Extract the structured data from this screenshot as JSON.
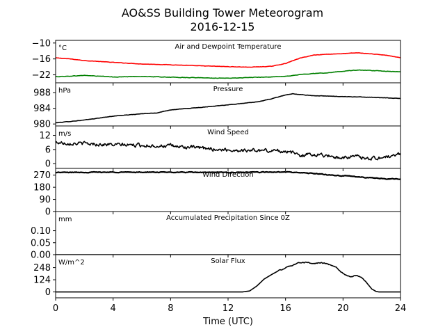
{
  "figure": {
    "title": "AO&SS Building Tower Meteorogram",
    "date": "2016-12-15",
    "xlabel": "Time (UTC)"
  },
  "colors": {
    "temperature": "#ff0000",
    "dewpoint": "#008000",
    "black": "#000000"
  },
  "chart_data": [
    {
      "type": "line",
      "title": "Air and Dewpoint Temperature",
      "unit": "°C",
      "xlim": [
        0,
        24
      ],
      "ylim": [
        -25,
        -9
      ],
      "xticks": [
        0,
        4,
        8,
        12,
        16,
        20,
        24
      ],
      "yticks": [
        -10,
        -16,
        -22
      ],
      "ytick_labels": [
        "−10",
        "−16",
        "−22"
      ],
      "series": [
        {
          "color": "#ff0000",
          "noise": 0.12,
          "x": [
            0,
            1,
            2,
            4,
            6,
            8,
            10,
            12,
            13.5,
            15,
            16,
            17,
            18,
            19,
            20,
            21,
            22,
            23,
            24
          ],
          "y": [
            -15.6,
            -16.0,
            -16.6,
            -17.3,
            -17.9,
            -18.2,
            -18.6,
            -18.9,
            -19.1,
            -18.8,
            -17.7,
            -15.7,
            -14.5,
            -14.2,
            -14.0,
            -13.7,
            -14.1,
            -14.6,
            -15.6
          ]
        },
        {
          "color": "#008000",
          "noise": 0.15,
          "x": [
            0,
            1,
            2,
            3,
            4,
            6,
            8,
            10,
            12,
            14,
            15,
            16,
            17,
            18,
            19,
            20,
            21,
            22,
            24
          ],
          "y": [
            -22.7,
            -22.5,
            -22.2,
            -22.5,
            -22.8,
            -22.6,
            -22.9,
            -23.1,
            -23.3,
            -22.9,
            -22.8,
            -22.6,
            -21.9,
            -21.5,
            -21.2,
            -20.6,
            -20.2,
            -20.4,
            -20.9
          ]
        }
      ]
    },
    {
      "type": "line",
      "title": "Pressure",
      "unit": "hPa",
      "xlim": [
        0,
        24
      ],
      "ylim": [
        979.5,
        990.5
      ],
      "xticks": [
        0,
        4,
        8,
        12,
        16,
        20,
        24
      ],
      "yticks": [
        980,
        984,
        988
      ],
      "ytick_labels": [
        "980",
        "984",
        "988"
      ],
      "series": [
        {
          "color": "#000000",
          "noise": 0.08,
          "x": [
            0,
            2,
            4,
            6,
            7,
            8,
            10,
            12,
            14,
            15,
            16,
            16.5,
            17,
            18,
            20,
            22,
            24
          ],
          "y": [
            980.3,
            981.0,
            982.0,
            982.6,
            982.8,
            983.6,
            984.2,
            984.9,
            985.6,
            986.4,
            987.4,
            987.7,
            987.5,
            987.2,
            987.0,
            986.8,
            986.5
          ]
        }
      ]
    },
    {
      "type": "line",
      "title": "Wind Speed",
      "unit": "m/s",
      "xlim": [
        0,
        24
      ],
      "ylim": [
        -2,
        16
      ],
      "xticks": [
        0,
        4,
        8,
        12,
        16,
        20,
        24
      ],
      "yticks": [
        0,
        6,
        12
      ],
      "ytick_labels": [
        "0",
        "6",
        "12"
      ],
      "series": [
        {
          "color": "#000000",
          "noise": 1.4,
          "x": [
            0,
            2,
            4,
            6,
            8,
            10,
            12,
            14,
            16,
            17,
            18,
            20,
            21,
            22,
            23,
            24
          ],
          "y": [
            9.0,
            8.5,
            8.0,
            7.8,
            7.5,
            6.6,
            5.8,
            5.6,
            5.4,
            3.6,
            4.0,
            2.6,
            3.0,
            2.2,
            2.8,
            4.0
          ]
        }
      ]
    },
    {
      "type": "line",
      "title": "Wind Direction",
      "unit": "",
      "xlim": [
        0,
        24
      ],
      "ylim": [
        0,
        320
      ],
      "xticks": [
        0,
        4,
        8,
        12,
        16,
        20,
        24
      ],
      "yticks": [
        0,
        90,
        180,
        270
      ],
      "ytick_labels": [
        "0",
        "90",
        "180",
        "270"
      ],
      "series": [
        {
          "color": "#000000",
          "noise": 5,
          "x": [
            0,
            4,
            8,
            12,
            16,
            17,
            18,
            19,
            20,
            21,
            22,
            23,
            24
          ],
          "y": [
            290,
            292,
            291,
            290,
            293,
            288,
            282,
            272,
            265,
            258,
            250,
            243,
            240
          ]
        }
      ]
    },
    {
      "type": "line",
      "title": "Accumulated Precipitation Since 0Z",
      "unit": "mm",
      "xlim": [
        0,
        24
      ],
      "ylim": [
        0,
        0.18
      ],
      "xticks": [
        0,
        4,
        8,
        12,
        16,
        20,
        24
      ],
      "yticks": [
        0,
        0.05,
        0.1
      ],
      "ytick_labels": [
        "0.00",
        "0.05",
        "0.10"
      ],
      "series": [
        {
          "color": "#000000",
          "noise": 0,
          "x": [
            0,
            24
          ],
          "y": [
            0,
            0
          ]
        }
      ]
    },
    {
      "type": "line",
      "title": "Solar Flux",
      "unit": "W/m^2",
      "xlim": [
        0,
        24
      ],
      "ylim": [
        -60,
        380
      ],
      "xticks": [
        0,
        4,
        8,
        12,
        16,
        20,
        24
      ],
      "yticks": [
        0,
        124,
        248
      ],
      "ytick_labels": [
        "0",
        "124",
        "248"
      ],
      "xtick_labels": [
        "0",
        "4",
        "8",
        "12",
        "16",
        "20",
        "24"
      ],
      "series": [
        {
          "color": "#000000",
          "noise": 10,
          "noise_range": [
            15.5,
            21.5
          ],
          "x": [
            0,
            13.0,
            13.5,
            14.0,
            14.5,
            15.0,
            15.5,
            16.0,
            16.5,
            17.0,
            17.5,
            18.0,
            18.5,
            19.0,
            19.5,
            20.0,
            20.5,
            21.0,
            21.5,
            22.0,
            22.3,
            22.5,
            24
          ],
          "y": [
            0,
            0,
            10,
            60,
            130,
            175,
            215,
            245,
            275,
            300,
            300,
            290,
            300,
            280,
            250,
            185,
            155,
            170,
            120,
            30,
            5,
            0,
            0
          ]
        }
      ]
    }
  ]
}
